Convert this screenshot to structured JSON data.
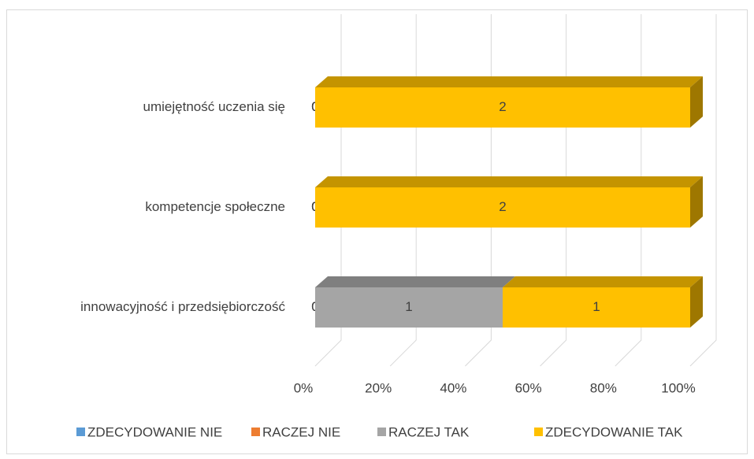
{
  "chart_data": {
    "type": "bar",
    "orientation": "horizontal",
    "stacking": "percent",
    "three_d": true,
    "categories": [
      "umiejętność uczenia się",
      "kompetencje społeczne",
      "innowacyjność i przedsiębiorczość"
    ],
    "series": [
      {
        "name": "ZDECYDOWANIE NIE",
        "color": "#5B9BD5",
        "values": [
          0,
          0,
          0
        ]
      },
      {
        "name": "RACZEJ NIE",
        "color": "#ED7D31",
        "values": [
          0,
          0,
          0
        ]
      },
      {
        "name": "RACZEJ TAK",
        "color": "#A5A5A5",
        "values": [
          0,
          0,
          1
        ]
      },
      {
        "name": "ZDECYDOWANIE TAK",
        "color": "#FFC000",
        "values": [
          2,
          2,
          1
        ]
      }
    ],
    "xlim": [
      0,
      100
    ],
    "xticks": [
      {
        "value": 0,
        "label": "0%"
      },
      {
        "value": 20,
        "label": "20%"
      },
      {
        "value": 40,
        "label": "40%"
      },
      {
        "value": 60,
        "label": "60%"
      },
      {
        "value": 80,
        "label": "80%"
      },
      {
        "value": 100,
        "label": "100%"
      }
    ],
    "grid": true,
    "legend": "bottom"
  }
}
